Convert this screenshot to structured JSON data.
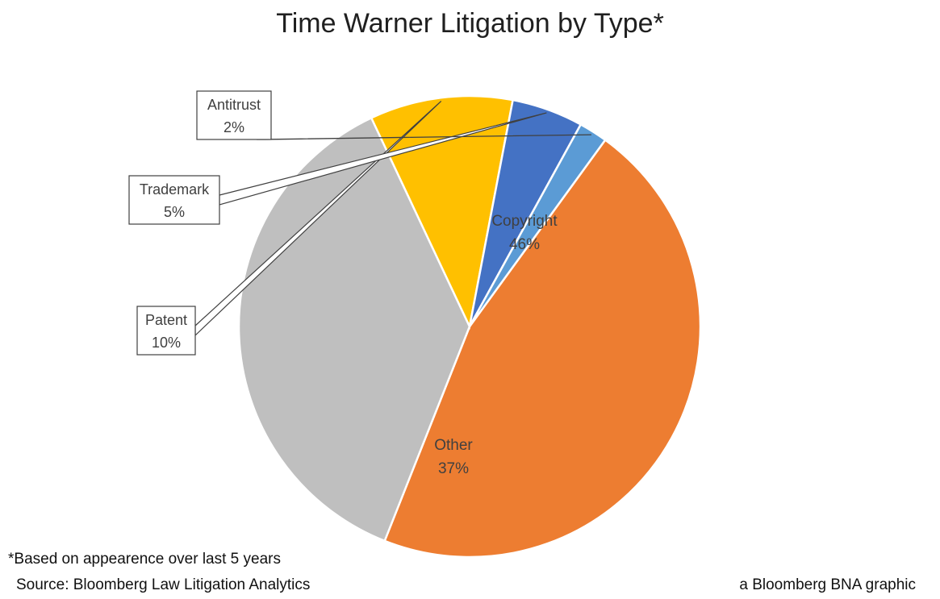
{
  "chart_data": {
    "type": "pie",
    "title": "Time Warner Litigation by Type*",
    "slices": [
      {
        "label": "Copyright",
        "value": 46,
        "value_label": "46%",
        "color": "#ED7D31"
      },
      {
        "label": "Other",
        "value": 37,
        "value_label": "37%",
        "color": "#BFBFBF"
      },
      {
        "label": "Patent",
        "value": 10,
        "value_label": "10%",
        "color": "#FFC000"
      },
      {
        "label": "Trademark",
        "value": 5,
        "value_label": "5%",
        "color": "#4472C4"
      },
      {
        "label": "Antitrust",
        "value": 2,
        "value_label": "2%",
        "color": "#5B9BD5"
      }
    ],
    "legend": "none"
  },
  "footnotes": {
    "based_on": "*Based on appearence over last 5 years",
    "source": "Source: Bloomberg Law Litigation Analytics",
    "credit": "a Bloomberg BNA graphic"
  }
}
